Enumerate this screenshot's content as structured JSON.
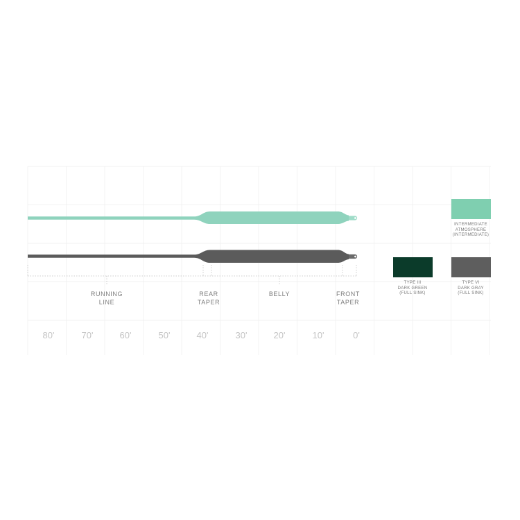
{
  "lines": [
    {
      "name": "intermediate",
      "color": "#8fd3bd",
      "tip_color": "#9fdcc8"
    },
    {
      "name": "sinking",
      "color": "#5b5b5b",
      "tip_color": "#6a6a6a"
    }
  ],
  "sections": [
    {
      "id": "running-line",
      "lines": [
        "RUNNING",
        "LINE"
      ]
    },
    {
      "id": "rear-taper",
      "lines": [
        "REAR",
        "TAPER"
      ]
    },
    {
      "id": "belly",
      "lines": [
        "BELLY"
      ]
    },
    {
      "id": "front-taper",
      "lines": [
        "FRONT",
        "TAPER"
      ]
    }
  ],
  "length_scale": [
    "80'",
    "70'",
    "60'",
    "50'",
    "40'",
    "30'",
    "20'",
    "10'",
    "0'"
  ],
  "swatches": [
    {
      "id": "intermediate",
      "color": "#7fcfb0",
      "caption": [
        "INTERMEDIATE",
        "ATMOSPHERE",
        "(INTERMEDIATE)"
      ]
    },
    {
      "id": "type-iii",
      "color": "#0b3b2a",
      "caption": [
        "TYPE III",
        "DARK GREEN",
        "(FULL SINK)"
      ]
    },
    {
      "id": "type-vi",
      "color": "#5e5e5e",
      "caption": [
        "TYPE VI",
        "DARK GRAY",
        "(FULL SINK)"
      ]
    }
  ],
  "grid_color": "#eeeeee"
}
